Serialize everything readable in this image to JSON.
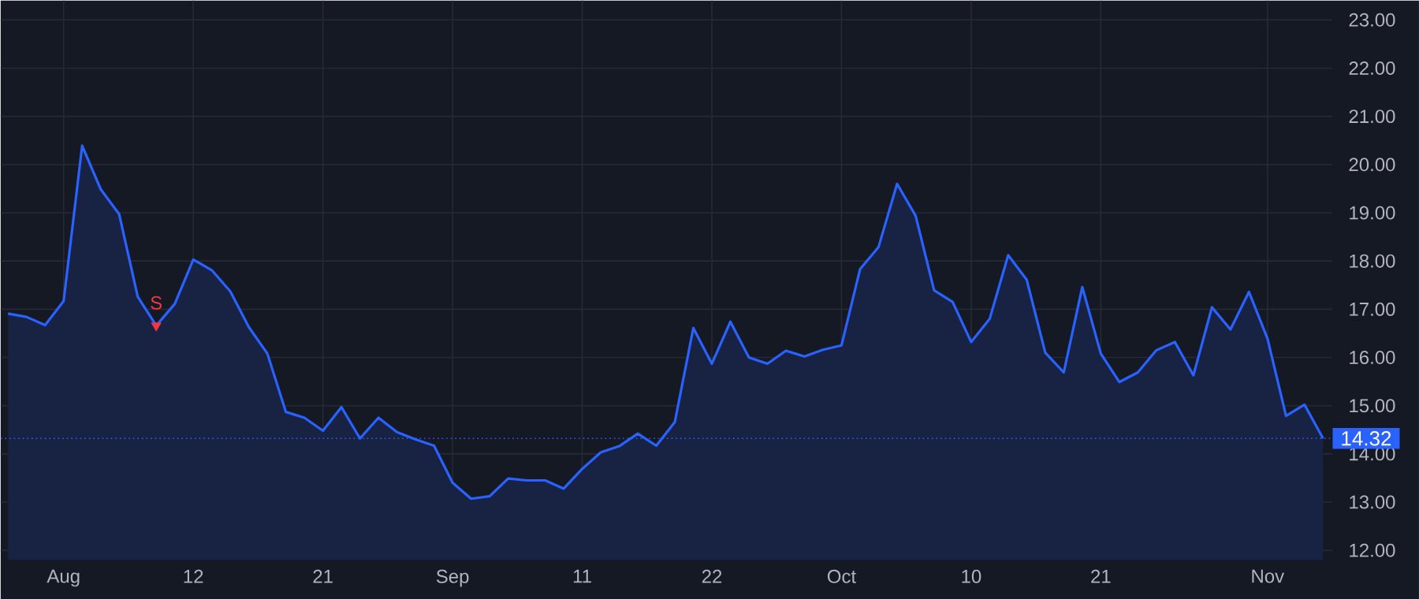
{
  "chart_data": {
    "type": "area",
    "categories": [
      null,
      null,
      null,
      "Aug",
      null,
      null,
      null,
      null,
      null,
      null,
      "12",
      null,
      null,
      null,
      null,
      null,
      null,
      "21",
      null,
      null,
      null,
      null,
      null,
      null,
      "Sep",
      null,
      null,
      null,
      null,
      null,
      null,
      "11",
      null,
      null,
      null,
      null,
      null,
      null,
      "22",
      null,
      null,
      null,
      null,
      null,
      null,
      "Oct",
      null,
      null,
      null,
      null,
      null,
      null,
      "10",
      null,
      null,
      null,
      null,
      null,
      null,
      "21",
      null,
      null,
      null,
      null,
      null,
      null,
      null,
      null,
      "Nov",
      null,
      null,
      null
    ],
    "series": [
      {
        "color": "#2962ff",
        "values": [
          16.91,
          16.84,
          16.67,
          17.17,
          20.39,
          19.49,
          18.97,
          17.26,
          16.66,
          17.11,
          18.03,
          17.81,
          17.37,
          16.63,
          16.08,
          14.87,
          14.75,
          14.48,
          14.97,
          14.32,
          14.75,
          14.45,
          14.3,
          14.17,
          13.4,
          13.07,
          13.12,
          13.49,
          13.45,
          13.45,
          13.28,
          13.69,
          14.03,
          14.16,
          14.42,
          14.17,
          14.66,
          16.61,
          15.87,
          16.74,
          16.0,
          15.87,
          16.14,
          16.02,
          16.16,
          16.25,
          17.83,
          18.29,
          19.6,
          18.94,
          17.39,
          17.15,
          16.32,
          16.8,
          18.12,
          17.61,
          16.1,
          15.69,
          17.46,
          16.08,
          15.49,
          15.69,
          16.15,
          16.32,
          15.63,
          17.04,
          16.58,
          17.36,
          16.39,
          14.79,
          15.02,
          14.32
        ]
      },
      {
        "type": "scatter",
        "color": "#f23645",
        "values": [
          null,
          null,
          null,
          null,
          null,
          null,
          null,
          null,
          16.66,
          null,
          null,
          null,
          null,
          null,
          null,
          null,
          null,
          null,
          null,
          null,
          null,
          null,
          null,
          null,
          null,
          null,
          null,
          null,
          null,
          null,
          null,
          null,
          null,
          null,
          null,
          null,
          null,
          null,
          null,
          null,
          null,
          null,
          null,
          null,
          null,
          null,
          null,
          null,
          null,
          null,
          null,
          null,
          null,
          null,
          null,
          null,
          null,
          null,
          null,
          null,
          null,
          null,
          null,
          null,
          null,
          null,
          null,
          null,
          null,
          null,
          null,
          null
        ],
        "value_labels": [
          null,
          null,
          null,
          null,
          null,
          null,
          null,
          null,
          "S",
          null,
          null,
          null,
          null,
          null,
          null,
          null,
          null,
          null,
          null,
          null,
          null,
          null,
          null,
          null,
          null,
          null,
          null,
          null,
          null,
          null,
          null,
          null,
          null,
          null,
          null,
          null,
          null,
          null,
          null,
          null,
          null,
          null,
          null,
          null,
          null,
          null,
          null,
          null,
          null,
          null,
          null,
          null,
          null,
          null,
          null,
          null,
          null,
          null,
          null,
          null,
          null,
          null,
          null,
          null,
          null,
          null,
          null,
          null,
          null,
          null,
          null,
          null
        ]
      }
    ],
    "ylim": [
      11.8,
      23.4
    ],
    "yticks": [
      {
        "value": 12,
        "label": "12.00"
      },
      {
        "value": 13,
        "label": "13.00"
      },
      {
        "value": 14,
        "label": "14.00"
      },
      {
        "value": 15,
        "label": "15.00"
      },
      {
        "value": 16,
        "label": "16.00"
      },
      {
        "value": 17,
        "label": "17.00"
      },
      {
        "value": 18,
        "label": "18.00"
      },
      {
        "value": 19,
        "label": "19.00"
      },
      {
        "value": 20,
        "label": "20.00"
      },
      {
        "value": 21,
        "label": "21.00"
      },
      {
        "value": 22,
        "label": "22.00"
      },
      {
        "value": 23,
        "label": "23.00"
      }
    ],
    "ref_lines": [
      {
        "axis": "y",
        "value": 14.32,
        "label": "14.32",
        "color": "#2962ff",
        "line_style": "dotted"
      }
    ],
    "grid": true
  }
}
